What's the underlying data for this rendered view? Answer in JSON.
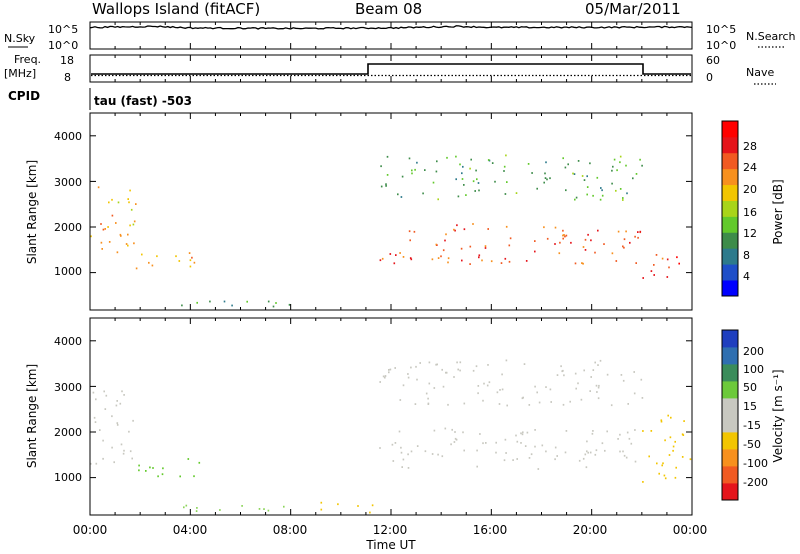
{
  "header": {
    "station": "Wallops Island (fitACF)",
    "beam": "Beam 08",
    "date": "05/Mar/2011"
  },
  "nsky_panel": {
    "left_label": "N.Sky",
    "left_ticks": [
      "10^5",
      "10^0"
    ],
    "right_label": "N.Search",
    "right_ticks": [
      "10^5",
      "10^0"
    ]
  },
  "freq_panel": {
    "left_label_1": "Freq.",
    "left_label_2": "[MHz]",
    "left_ticks": [
      "18",
      "8"
    ],
    "right_label": "Nave",
    "right_ticks": [
      "60",
      "0"
    ]
  },
  "cpid_panel": {
    "label": "CPID",
    "program": "tau (fast) -503"
  },
  "power_panel": {
    "ylabel": "Slant Range [km]",
    "yticks": [
      "4000",
      "3000",
      "2000",
      "1000"
    ],
    "colorbar_label": "Power [dB]",
    "colorbar_ticks": [
      "28",
      "24",
      "20",
      "16",
      "12",
      "8",
      "4"
    ],
    "colors": [
      "#0000ff",
      "#1f4fc8",
      "#2d7a8c",
      "#3d8c4a",
      "#62c92b",
      "#a8d419",
      "#f2c500",
      "#f7901e",
      "#f15a22",
      "#e5141b",
      "#ff0000"
    ]
  },
  "velocity_panel": {
    "ylabel": "Slant Range [km]",
    "yticks": [
      "4000",
      "3000",
      "2000",
      "1000"
    ],
    "colorbar_label": "Velocity [m s⁻¹]",
    "colorbar_ticks": [
      "200",
      "100",
      "50",
      "15",
      "-15",
      "-50",
      "-100",
      "-200"
    ],
    "colors": [
      "#1f3fbf",
      "#2f6fb0",
      "#3a8c5a",
      "#6cc93a",
      "#c8c8c0",
      "#c8c8c0",
      "#f2c500",
      "#f7901e",
      "#f15a22",
      "#e5141b"
    ]
  },
  "xaxis": {
    "label": "Time UT",
    "ticks": [
      "00:00",
      "04:00",
      "08:00",
      "12:00",
      "16:00",
      "20:00",
      "00:00"
    ]
  },
  "chart_data": [
    {
      "type": "line",
      "title": "N.Sky / N.Search",
      "x": [
        "00:00",
        "02:40",
        "04:00",
        "08:00",
        "12:00",
        "14:40",
        "16:00",
        "20:00",
        "24:00"
      ],
      "series": [
        {
          "name": "N.Sky",
          "values": [
            4.0,
            4.2,
            3.9,
            3.8,
            3.9,
            4.2,
            4.0,
            4.0,
            4.1
          ]
        }
      ]
    },
    {
      "type": "line",
      "title": "Freq. / Nave",
      "x": [
        "00:00",
        "10:45",
        "10:45",
        "21:50",
        "21:50",
        "24:00"
      ],
      "series": [
        {
          "name": "Freq. [MHz]",
          "values": [
            10.8,
            10.8,
            15.8,
            15.8,
            10.8,
            10.8
          ]
        },
        {
          "name": "Nave",
          "values": [
            15,
            15,
            18,
            18,
            15,
            15
          ]
        }
      ]
    },
    {
      "type": "heatmap",
      "title": "Power [dB]",
      "xlabel": "Time UT",
      "ylabel": "Slant Range [km]",
      "xlim": [
        0,
        24
      ],
      "ylim": [
        180,
        4500
      ],
      "regions": [
        {
          "t": [
            0.0,
            1.8
          ],
          "r": [
            1300,
            3100
          ],
          "power_db": 20
        },
        {
          "t": [
            1.8,
            4.5
          ],
          "r": [
            950,
            1450
          ],
          "power_db": 20
        },
        {
          "t": [
            3.6,
            9.0
          ],
          "r": [
            250,
            450
          ],
          "power_db": 8
        },
        {
          "t": [
            11.5,
            22.0
          ],
          "r": [
            1200,
            2100
          ],
          "power_db": 24
        },
        {
          "t": [
            11.5,
            22.0
          ],
          "r": [
            2600,
            3600
          ],
          "power_db": 10
        },
        {
          "t": [
            22.0,
            24.0
          ],
          "r": [
            900,
            1500
          ],
          "power_db": 26
        }
      ]
    },
    {
      "type": "heatmap",
      "title": "Velocity [m s⁻¹]",
      "xlabel": "Time UT",
      "ylabel": "Slant Range [km]",
      "xlim": [
        0,
        24
      ],
      "ylim": [
        180,
        4500
      ],
      "regions": [
        {
          "t": [
            0.0,
            1.8
          ],
          "r": [
            1300,
            3100
          ],
          "velocity": 0
        },
        {
          "t": [
            1.8,
            4.5
          ],
          "r": [
            950,
            1450
          ],
          "velocity": 40
        },
        {
          "t": [
            3.6,
            9.0
          ],
          "r": [
            250,
            450
          ],
          "velocity": 20
        },
        {
          "t": [
            9.0,
            11.5
          ],
          "r": [
            250,
            500
          ],
          "velocity": -40
        },
        {
          "t": [
            11.5,
            22.0
          ],
          "r": [
            1200,
            2100
          ],
          "velocity": 0
        },
        {
          "t": [
            11.5,
            22.0
          ],
          "r": [
            2600,
            3600
          ],
          "velocity": 0
        },
        {
          "t": [
            22.0,
            24.0
          ],
          "r": [
            900,
            2400
          ],
          "velocity": -20
        }
      ]
    }
  ]
}
